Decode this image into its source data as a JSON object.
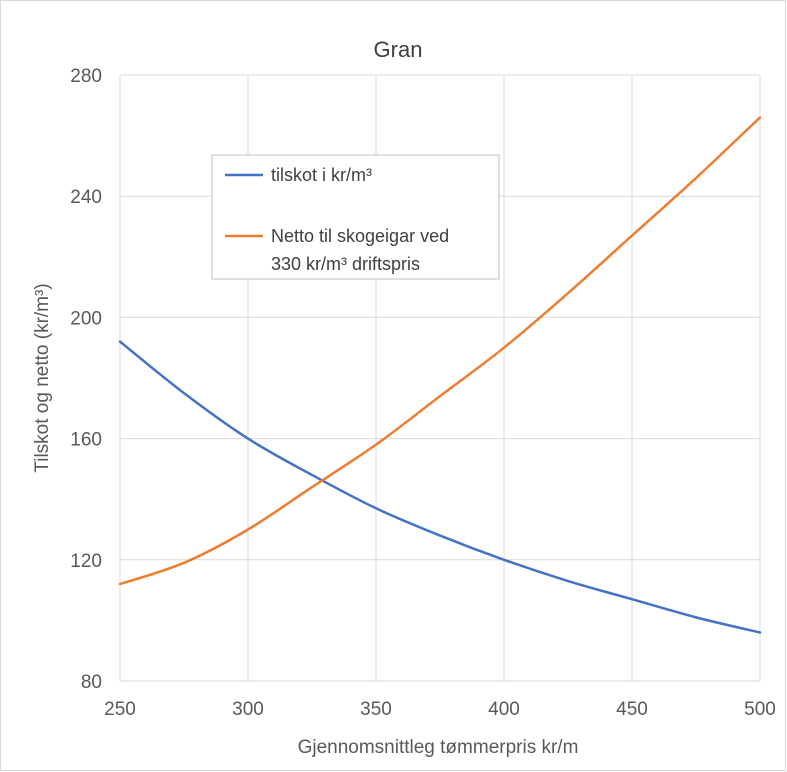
{
  "chart_data": {
    "type": "line",
    "title": "Gran",
    "xlabel": "Gjennomsnittleg tømmerpris kr/m",
    "ylabel": "Tilskot og netto (kr/m³)",
    "xlim": [
      250,
      500
    ],
    "ylim": [
      80,
      280
    ],
    "x_ticks": [
      250,
      300,
      350,
      400,
      450,
      500
    ],
    "y_ticks": [
      80,
      120,
      160,
      200,
      240,
      280
    ],
    "grid": true,
    "legend": "upper-left-inside",
    "x": [
      250,
      275,
      300,
      325,
      350,
      375,
      400,
      425,
      450,
      475,
      500
    ],
    "series": [
      {
        "name": "tilskot i kr/m³",
        "color": "#4472C4",
        "values": [
          192,
          175,
          160,
          148,
          137,
          128,
          120,
          113,
          107,
          101,
          96
        ]
      },
      {
        "name": "Netto til skogeigar ved 330 kr/m³ driftspris",
        "name_lines": [
          "Netto til skogeigar ved",
          "330 kr/m³ driftspris"
        ],
        "color": "#ED7D31",
        "values": [
          112,
          119,
          130,
          144,
          158,
          174,
          190,
          208,
          227,
          246,
          266
        ]
      }
    ]
  }
}
